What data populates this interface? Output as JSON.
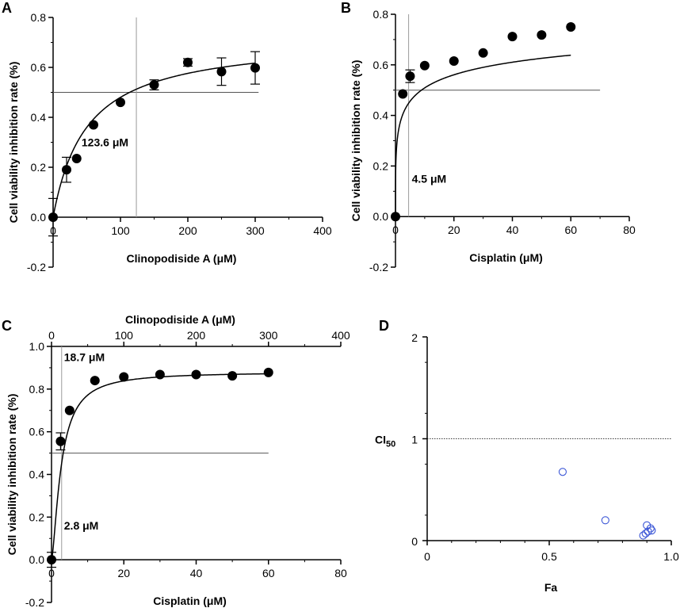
{
  "chart_data": [
    {
      "panel": "A",
      "type": "scatter",
      "xlabel": "Clinopodiside  A (μM)",
      "ylabel": "Cell viability inhibition rate (%)",
      "xlim": [
        0,
        400
      ],
      "ylim": [
        -0.2,
        0.8
      ],
      "xticks": [
        "0",
        "100",
        "200",
        "300",
        "400"
      ],
      "yticks": [
        "-0.2",
        "0.0",
        "0.2",
        "0.4",
        "0.6",
        "0.8"
      ],
      "x": [
        0,
        20,
        35,
        60,
        100,
        150,
        200,
        250,
        300
      ],
      "y": [
        0.0,
        0.19,
        0.235,
        0.37,
        0.46,
        0.53,
        0.62,
        0.583,
        0.598
      ],
      "err": [
        0.075,
        0.05,
        0.0,
        0.0,
        0.0,
        0.02,
        0.015,
        0.055,
        0.065
      ],
      "ic50_value": 123.6,
      "ic50_label": "123.6 μM",
      "hline": 0.5,
      "fit": {
        "top": 0.72,
        "ec50": 50,
        "hill": 1.0
      }
    },
    {
      "panel": "B",
      "type": "scatter",
      "xlabel": "Cisplatin (μM)",
      "ylabel": "Cell viability inhibition rate (%)",
      "xlim": [
        0,
        80
      ],
      "ylim": [
        -0.2,
        0.8
      ],
      "xticks": [
        "0",
        "20",
        "40",
        "60",
        "80"
      ],
      "yticks": [
        "-0.2",
        "0.0",
        "0.2",
        "0.4",
        "0.6",
        "0.8"
      ],
      "x": [
        0,
        2.5,
        5,
        10,
        20,
        30,
        40,
        50,
        60
      ],
      "y": [
        0.0,
        0.485,
        0.555,
        0.597,
        0.615,
        0.647,
        0.712,
        0.718,
        0.75
      ],
      "err": [
        0.0,
        0.0,
        0.025,
        0.0,
        0.0,
        0.0,
        0.0,
        0.0,
        0.0
      ],
      "ic50_value": 4.5,
      "ic50_label": "4.5 μM",
      "hline": 0.5,
      "fit": {
        "top": 0.95,
        "ec50": 6.4,
        "hill": 0.32
      }
    },
    {
      "panel": "C",
      "type": "scatter",
      "xlabel": "Cisplatin (μM)",
      "xlabel_top": "Clinopodiside  A (μM)",
      "ylabel": "Cell viability inhibition rate (%)",
      "xlim": [
        0,
        80
      ],
      "xlim_top": [
        0,
        400
      ],
      "ylim": [
        -0.2,
        1.0
      ],
      "xticks": [
        "0",
        "20",
        "40",
        "60",
        "80"
      ],
      "xticks_top": [
        "0",
        "100",
        "200",
        "300",
        "400"
      ],
      "yticks": [
        "-0.2",
        "0.0",
        "0.2",
        "0.4",
        "0.6",
        "0.8",
        "1.0"
      ],
      "x": [
        0,
        2.5,
        5,
        12,
        20,
        30,
        40,
        50,
        60
      ],
      "y": [
        0.0,
        0.555,
        0.7,
        0.84,
        0.857,
        0.868,
        0.868,
        0.862,
        0.878
      ],
      "err": [
        0.035,
        0.04,
        0.0,
        0.0,
        0.0,
        0.0,
        0.0,
        0.0,
        0.0
      ],
      "ic50_value_bottom": 2.8,
      "ic50_label_bottom": "2.8 μM",
      "ic50_value_top": 18.7,
      "ic50_label_top": "18.7 μM",
      "hline": 0.5,
      "fit": {
        "top": 0.88,
        "ec50": 2.7,
        "hill": 1.5
      }
    },
    {
      "panel": "D",
      "type": "scatter",
      "xlabel": "Fa",
      "ylabel": "CI",
      "ylabel_sub": "50",
      "xlim": [
        0,
        1.0
      ],
      "ylim": [
        0,
        2
      ],
      "xticks": [
        "0",
        "0.5",
        "1.0"
      ],
      "yticks": [
        "0",
        "1",
        "2"
      ],
      "reference_line": 1,
      "marker_color": "#3a55d6",
      "x": [
        0.555,
        0.73,
        0.9,
        0.915,
        0.905,
        0.895,
        0.885,
        0.92
      ],
      "y": [
        0.675,
        0.2,
        0.15,
        0.12,
        0.09,
        0.07,
        0.05,
        0.1
      ]
    }
  ]
}
